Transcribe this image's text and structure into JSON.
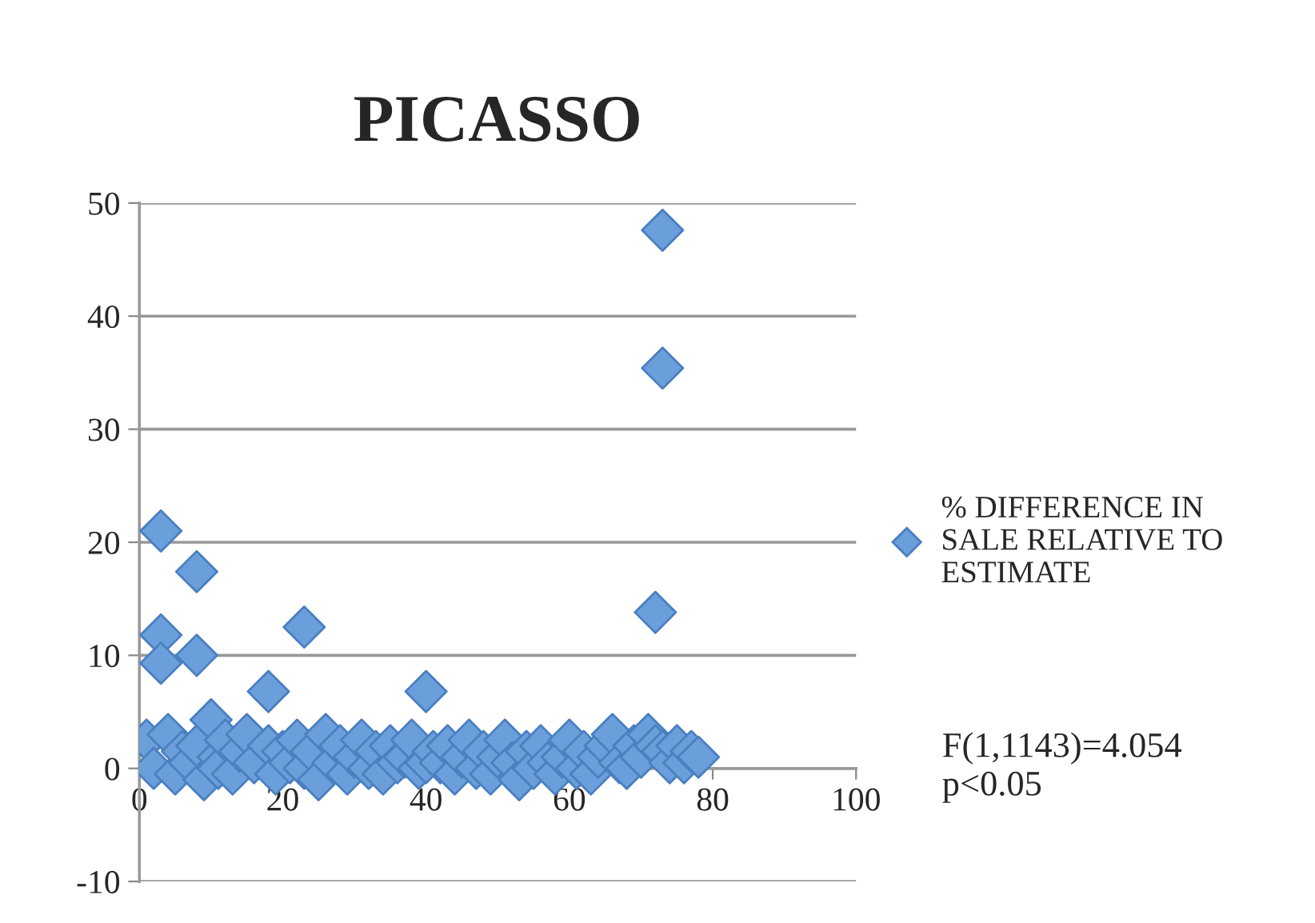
{
  "chart_data": {
    "type": "scatter",
    "title": "PICASSO",
    "series": [
      {
        "name": "% DIFFERENCE IN SALE RELATIVE TO ESTIMATE",
        "color": "#6a9fdc",
        "x": [
          1,
          2,
          3,
          3,
          3,
          4,
          5,
          6,
          7,
          8,
          8,
          8,
          9,
          10,
          11,
          11,
          12,
          13,
          14,
          15,
          16,
          18,
          18,
          19,
          20,
          21,
          22,
          23,
          23,
          24,
          25,
          26,
          27,
          28,
          29,
          30,
          31,
          32,
          33,
          34,
          35,
          36,
          37,
          38,
          39,
          40,
          40,
          41,
          42,
          43,
          44,
          45,
          46,
          47,
          48,
          49,
          50,
          51,
          52,
          53,
          54,
          55,
          56,
          57,
          58,
          59,
          60,
          61,
          62,
          63,
          64,
          65,
          66,
          67,
          68,
          69,
          70,
          71,
          72,
          72,
          73,
          73,
          73,
          74,
          75,
          76,
          77,
          78
        ],
        "values": [
          2.5,
          0.0,
          21.0,
          11.8,
          9.3,
          3.0,
          -0.5,
          1.5,
          0.5,
          17.4,
          10.0,
          2.0,
          -1.0,
          4.3,
          1.0,
          0.0,
          2.5,
          -0.5,
          1.5,
          3.0,
          0.5,
          6.8,
          2.0,
          -0.5,
          1.5,
          0.5,
          2.5,
          12.5,
          0.0,
          1.5,
          -1.0,
          3.0,
          0.5,
          2.0,
          -0.5,
          1.0,
          2.5,
          0.0,
          1.5,
          -0.5,
          2.0,
          0.5,
          1.0,
          2.5,
          0.0,
          6.8,
          0.5,
          1.5,
          0.5,
          2.0,
          -0.5,
          1.0,
          2.5,
          0.0,
          1.5,
          -0.5,
          1.0,
          2.5,
          0.5,
          -1.0,
          1.5,
          0.0,
          2.0,
          0.5,
          -0.5,
          1.0,
          2.5,
          0.0,
          1.5,
          -0.5,
          1.0,
          2.0,
          3.0,
          0.5,
          0.0,
          2.0,
          1.0,
          3.0,
          2.0,
          13.8,
          47.6,
          35.4,
          1.5,
          0.5,
          2.0,
          0.5,
          1.5,
          1.0
        ]
      }
    ],
    "xlim": [
      0,
      100
    ],
    "ylim": [
      -10,
      50
    ],
    "xticks": [
      0,
      20,
      40,
      60,
      80,
      100
    ],
    "yticks": [
      -10,
      0,
      10,
      20,
      30,
      40,
      50
    ],
    "grid": "y",
    "marker": "diamond",
    "legend": "right",
    "annotations": [
      "F(1,1143)=4.054\np<0.05"
    ]
  }
}
